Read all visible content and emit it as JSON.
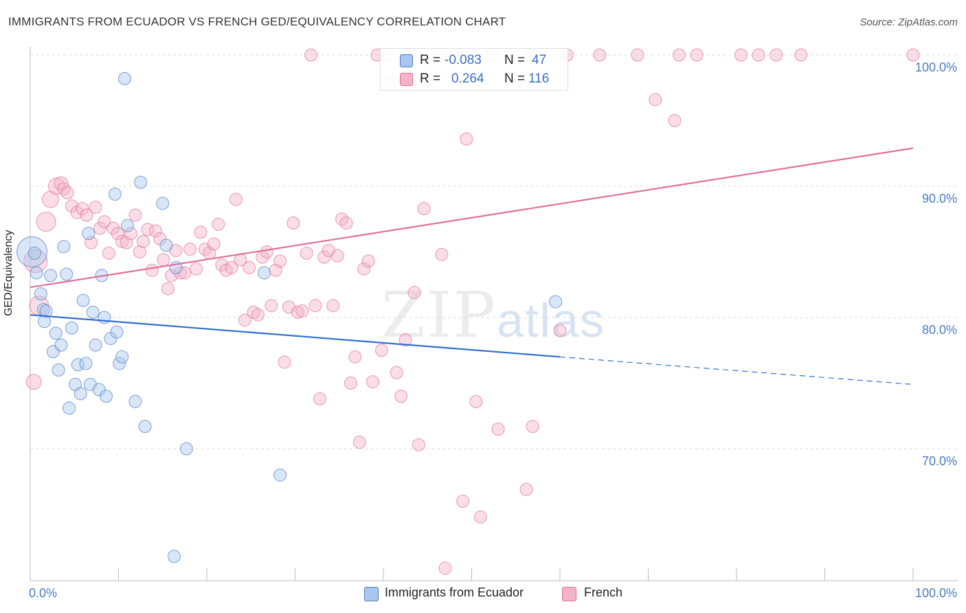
{
  "title": "IMMIGRANTS FROM ECUADOR VS FRENCH GED/EQUIVALENCY CORRELATION CHART",
  "source": "Source: ZipAtlas.com",
  "watermark": {
    "zip": "ZIP",
    "atlas": "atlas"
  },
  "legend_top": {
    "rows": [
      {
        "r_label": "R = ",
        "r_value": "-0.083",
        "n_label": "N = ",
        "n_value": "47"
      },
      {
        "r_label": "R = ",
        "r_value": "0.264",
        "n_label": "N = ",
        "n_value": "116"
      }
    ]
  },
  "colors": {
    "blue": "#4a7cc7",
    "blue_fill": "#a9c7ee",
    "pink": "#e07099",
    "pink_fill": "#f4b3c8",
    "grid": "#dddddd"
  },
  "chart_data": {
    "type": "scatter",
    "title": "IMMIGRANTS FROM ECUADOR VS FRENCH GED/EQUIVALENCY CORRELATION CHART",
    "xlabel": "",
    "ylabel": "GED/Equivalency",
    "xlim": [
      0,
      100
    ],
    "ylim": [
      60.5,
      102.5
    ],
    "x_tick_labels": [
      "0.0%",
      "100.0%"
    ],
    "y_ticks": [
      70,
      80,
      90,
      100
    ],
    "y_tick_labels": [
      "70.0%",
      "80.0%",
      "90.0%",
      "100.0%"
    ],
    "grid": true,
    "legend_position": "bottom-center",
    "series": [
      {
        "name": "Immigrants from Ecuador",
        "color": "#4a7cc7",
        "points": [
          [
            0.2,
            85.0,
            22
          ],
          [
            0.7,
            83.4,
            9
          ],
          [
            1.2,
            81.8,
            9
          ],
          [
            1.5,
            80.6,
            9
          ],
          [
            1.6,
            79.7,
            9
          ],
          [
            2.3,
            83.2,
            9
          ],
          [
            2.6,
            77.4,
            9
          ],
          [
            2.9,
            78.8,
            9
          ],
          [
            3.2,
            76.0,
            9
          ],
          [
            3.5,
            77.9,
            9
          ],
          [
            3.8,
            85.4,
            9
          ],
          [
            4.1,
            83.3,
            9
          ],
          [
            4.4,
            73.1,
            9
          ],
          [
            4.7,
            79.2,
            9
          ],
          [
            5.1,
            74.9,
            9
          ],
          [
            5.4,
            76.4,
            9
          ],
          [
            5.7,
            74.2,
            9
          ],
          [
            6.0,
            81.3,
            9
          ],
          [
            6.3,
            76.5,
            9
          ],
          [
            6.6,
            86.4,
            9
          ],
          [
            6.8,
            74.9,
            9
          ],
          [
            7.1,
            80.4,
            9
          ],
          [
            7.4,
            77.9,
            9
          ],
          [
            7.8,
            74.5,
            9
          ],
          [
            8.1,
            83.2,
            9
          ],
          [
            8.4,
            80.0,
            9
          ],
          [
            8.6,
            74.0,
            9
          ],
          [
            9.1,
            78.4,
            9
          ],
          [
            9.6,
            89.4,
            9
          ],
          [
            9.8,
            78.9,
            9
          ],
          [
            10.1,
            76.5,
            9
          ],
          [
            10.4,
            77.0,
            9
          ],
          [
            10.7,
            98.2,
            9
          ],
          [
            11.0,
            87.0,
            9
          ],
          [
            11.9,
            73.6,
            9
          ],
          [
            12.5,
            90.3,
            9
          ],
          [
            13.0,
            71.7,
            9
          ],
          [
            15.0,
            88.7,
            9
          ],
          [
            15.4,
            85.5,
            9
          ],
          [
            16.5,
            83.8,
            9
          ],
          [
            17.7,
            70.0,
            9
          ],
          [
            16.3,
            61.8,
            9
          ],
          [
            26.5,
            83.4,
            9
          ],
          [
            28.3,
            68.0,
            9
          ],
          [
            59.5,
            81.2,
            9
          ],
          [
            1.8,
            80.5,
            9
          ],
          [
            0.5,
            84.9,
            9
          ]
        ]
      },
      {
        "name": "French",
        "color": "#e07099",
        "points": [
          [
            0.4,
            75.1,
            11
          ],
          [
            0.6,
            84.3,
            17
          ],
          [
            1.0,
            80.9,
            14
          ],
          [
            1.8,
            87.3,
            14
          ],
          [
            2.3,
            89.0,
            12
          ],
          [
            3.0,
            90.0,
            12
          ],
          [
            3.5,
            90.2,
            10
          ],
          [
            3.8,
            89.8,
            9
          ],
          [
            4.2,
            89.5,
            9
          ],
          [
            4.7,
            88.5,
            9
          ],
          [
            5.3,
            88.0,
            9
          ],
          [
            5.9,
            88.3,
            9
          ],
          [
            6.4,
            87.8,
            9
          ],
          [
            6.9,
            85.7,
            9
          ],
          [
            7.4,
            88.4,
            9
          ],
          [
            7.9,
            86.8,
            9
          ],
          [
            8.4,
            87.3,
            9
          ],
          [
            8.9,
            84.9,
            9
          ],
          [
            9.4,
            86.8,
            9
          ],
          [
            9.9,
            86.4,
            9
          ],
          [
            10.4,
            85.8,
            9
          ],
          [
            10.9,
            85.7,
            9
          ],
          [
            11.4,
            86.4,
            9
          ],
          [
            11.9,
            87.8,
            9
          ],
          [
            12.4,
            85.0,
            9
          ],
          [
            12.8,
            85.8,
            9
          ],
          [
            13.3,
            86.7,
            9
          ],
          [
            13.8,
            83.6,
            9
          ],
          [
            14.2,
            86.6,
            9
          ],
          [
            14.7,
            86.0,
            9
          ],
          [
            15.1,
            84.4,
            9
          ],
          [
            15.6,
            82.2,
            9
          ],
          [
            16.0,
            83.2,
            9
          ],
          [
            16.5,
            85.1,
            9
          ],
          [
            17.0,
            83.4,
            9
          ],
          [
            17.5,
            83.4,
            9
          ],
          [
            18.1,
            85.2,
            9
          ],
          [
            18.8,
            83.7,
            9
          ],
          [
            19.3,
            86.5,
            9
          ],
          [
            19.8,
            85.2,
            9
          ],
          [
            20.3,
            84.9,
            9
          ],
          [
            20.8,
            85.6,
            9
          ],
          [
            21.3,
            87.1,
            9
          ],
          [
            21.7,
            84.0,
            9
          ],
          [
            22.2,
            83.6,
            9
          ],
          [
            22.8,
            83.8,
            9
          ],
          [
            23.3,
            89.0,
            9
          ],
          [
            23.8,
            84.4,
            9
          ],
          [
            24.3,
            79.8,
            9
          ],
          [
            24.8,
            83.8,
            9
          ],
          [
            25.3,
            80.4,
            9
          ],
          [
            25.8,
            80.2,
            9
          ],
          [
            26.3,
            84.6,
            9
          ],
          [
            26.8,
            85.0,
            9
          ],
          [
            27.3,
            80.9,
            9
          ],
          [
            27.8,
            83.6,
            9
          ],
          [
            28.3,
            84.3,
            9
          ],
          [
            28.8,
            76.6,
            9
          ],
          [
            29.3,
            80.8,
            9
          ],
          [
            29.8,
            87.2,
            9
          ],
          [
            30.3,
            80.4,
            9
          ],
          [
            30.8,
            80.5,
            9
          ],
          [
            31.3,
            84.9,
            9
          ],
          [
            31.8,
            100.0,
            9
          ],
          [
            32.3,
            80.9,
            9
          ],
          [
            32.8,
            73.8,
            9
          ],
          [
            33.3,
            84.6,
            9
          ],
          [
            33.8,
            85.1,
            9
          ],
          [
            34.3,
            80.9,
            9
          ],
          [
            34.8,
            84.7,
            9
          ],
          [
            35.3,
            87.5,
            9
          ],
          [
            35.8,
            87.2,
            9
          ],
          [
            36.3,
            75.0,
            9
          ],
          [
            36.8,
            77.0,
            9
          ],
          [
            37.3,
            70.5,
            9
          ],
          [
            37.8,
            83.7,
            9
          ],
          [
            38.3,
            84.3,
            9
          ],
          [
            38.8,
            75.1,
            9
          ],
          [
            39.3,
            100.0,
            9
          ],
          [
            39.8,
            77.5,
            9
          ],
          [
            40.4,
            100.0,
            9
          ],
          [
            41.0,
            98.0,
            9
          ],
          [
            41.5,
            75.8,
            9
          ],
          [
            42.0,
            74.0,
            9
          ],
          [
            42.5,
            78.3,
            9
          ],
          [
            43.0,
            100.0,
            9
          ],
          [
            43.5,
            81.9,
            9
          ],
          [
            44.0,
            70.3,
            9
          ],
          [
            44.6,
            88.3,
            9
          ],
          [
            46.4,
            100.0,
            9
          ],
          [
            46.6,
            84.8,
            9
          ],
          [
            47.0,
            60.9,
            9
          ],
          [
            48.3,
            100.0,
            9
          ],
          [
            49.0,
            66.0,
            9
          ],
          [
            49.4,
            93.6,
            9
          ],
          [
            50.5,
            73.6,
            9
          ],
          [
            51.0,
            64.8,
            9
          ],
          [
            52.3,
            100.0,
            9
          ],
          [
            53.0,
            71.5,
            9
          ],
          [
            55.3,
            98.0,
            9
          ],
          [
            56.2,
            66.9,
            9
          ],
          [
            56.6,
            100.0,
            9
          ],
          [
            56.9,
            71.7,
            9
          ],
          [
            60.0,
            79.0,
            9
          ],
          [
            60.8,
            100.0,
            9
          ],
          [
            64.5,
            100.0,
            9
          ],
          [
            68.8,
            100.0,
            9
          ],
          [
            70.8,
            96.6,
            9
          ],
          [
            73.0,
            95.0,
            9
          ],
          [
            73.5,
            100.0,
            9
          ],
          [
            75.5,
            100.0,
            9
          ],
          [
            80.5,
            100.0,
            9
          ],
          [
            82.5,
            100.0,
            9
          ],
          [
            84.5,
            100.0,
            9
          ],
          [
            87.3,
            100.0,
            9
          ],
          [
            100.0,
            100.0,
            9
          ]
        ]
      }
    ],
    "trend_lines": [
      {
        "series": "Immigrants from Ecuador",
        "solid": [
          [
            0,
            80.2
          ],
          [
            60,
            77.0
          ]
        ],
        "dashed": [
          [
            60,
            77.0
          ],
          [
            100,
            74.9
          ]
        ]
      },
      {
        "series": "French",
        "solid": [
          [
            0,
            82.3
          ],
          [
            100,
            92.9
          ]
        ]
      }
    ]
  }
}
